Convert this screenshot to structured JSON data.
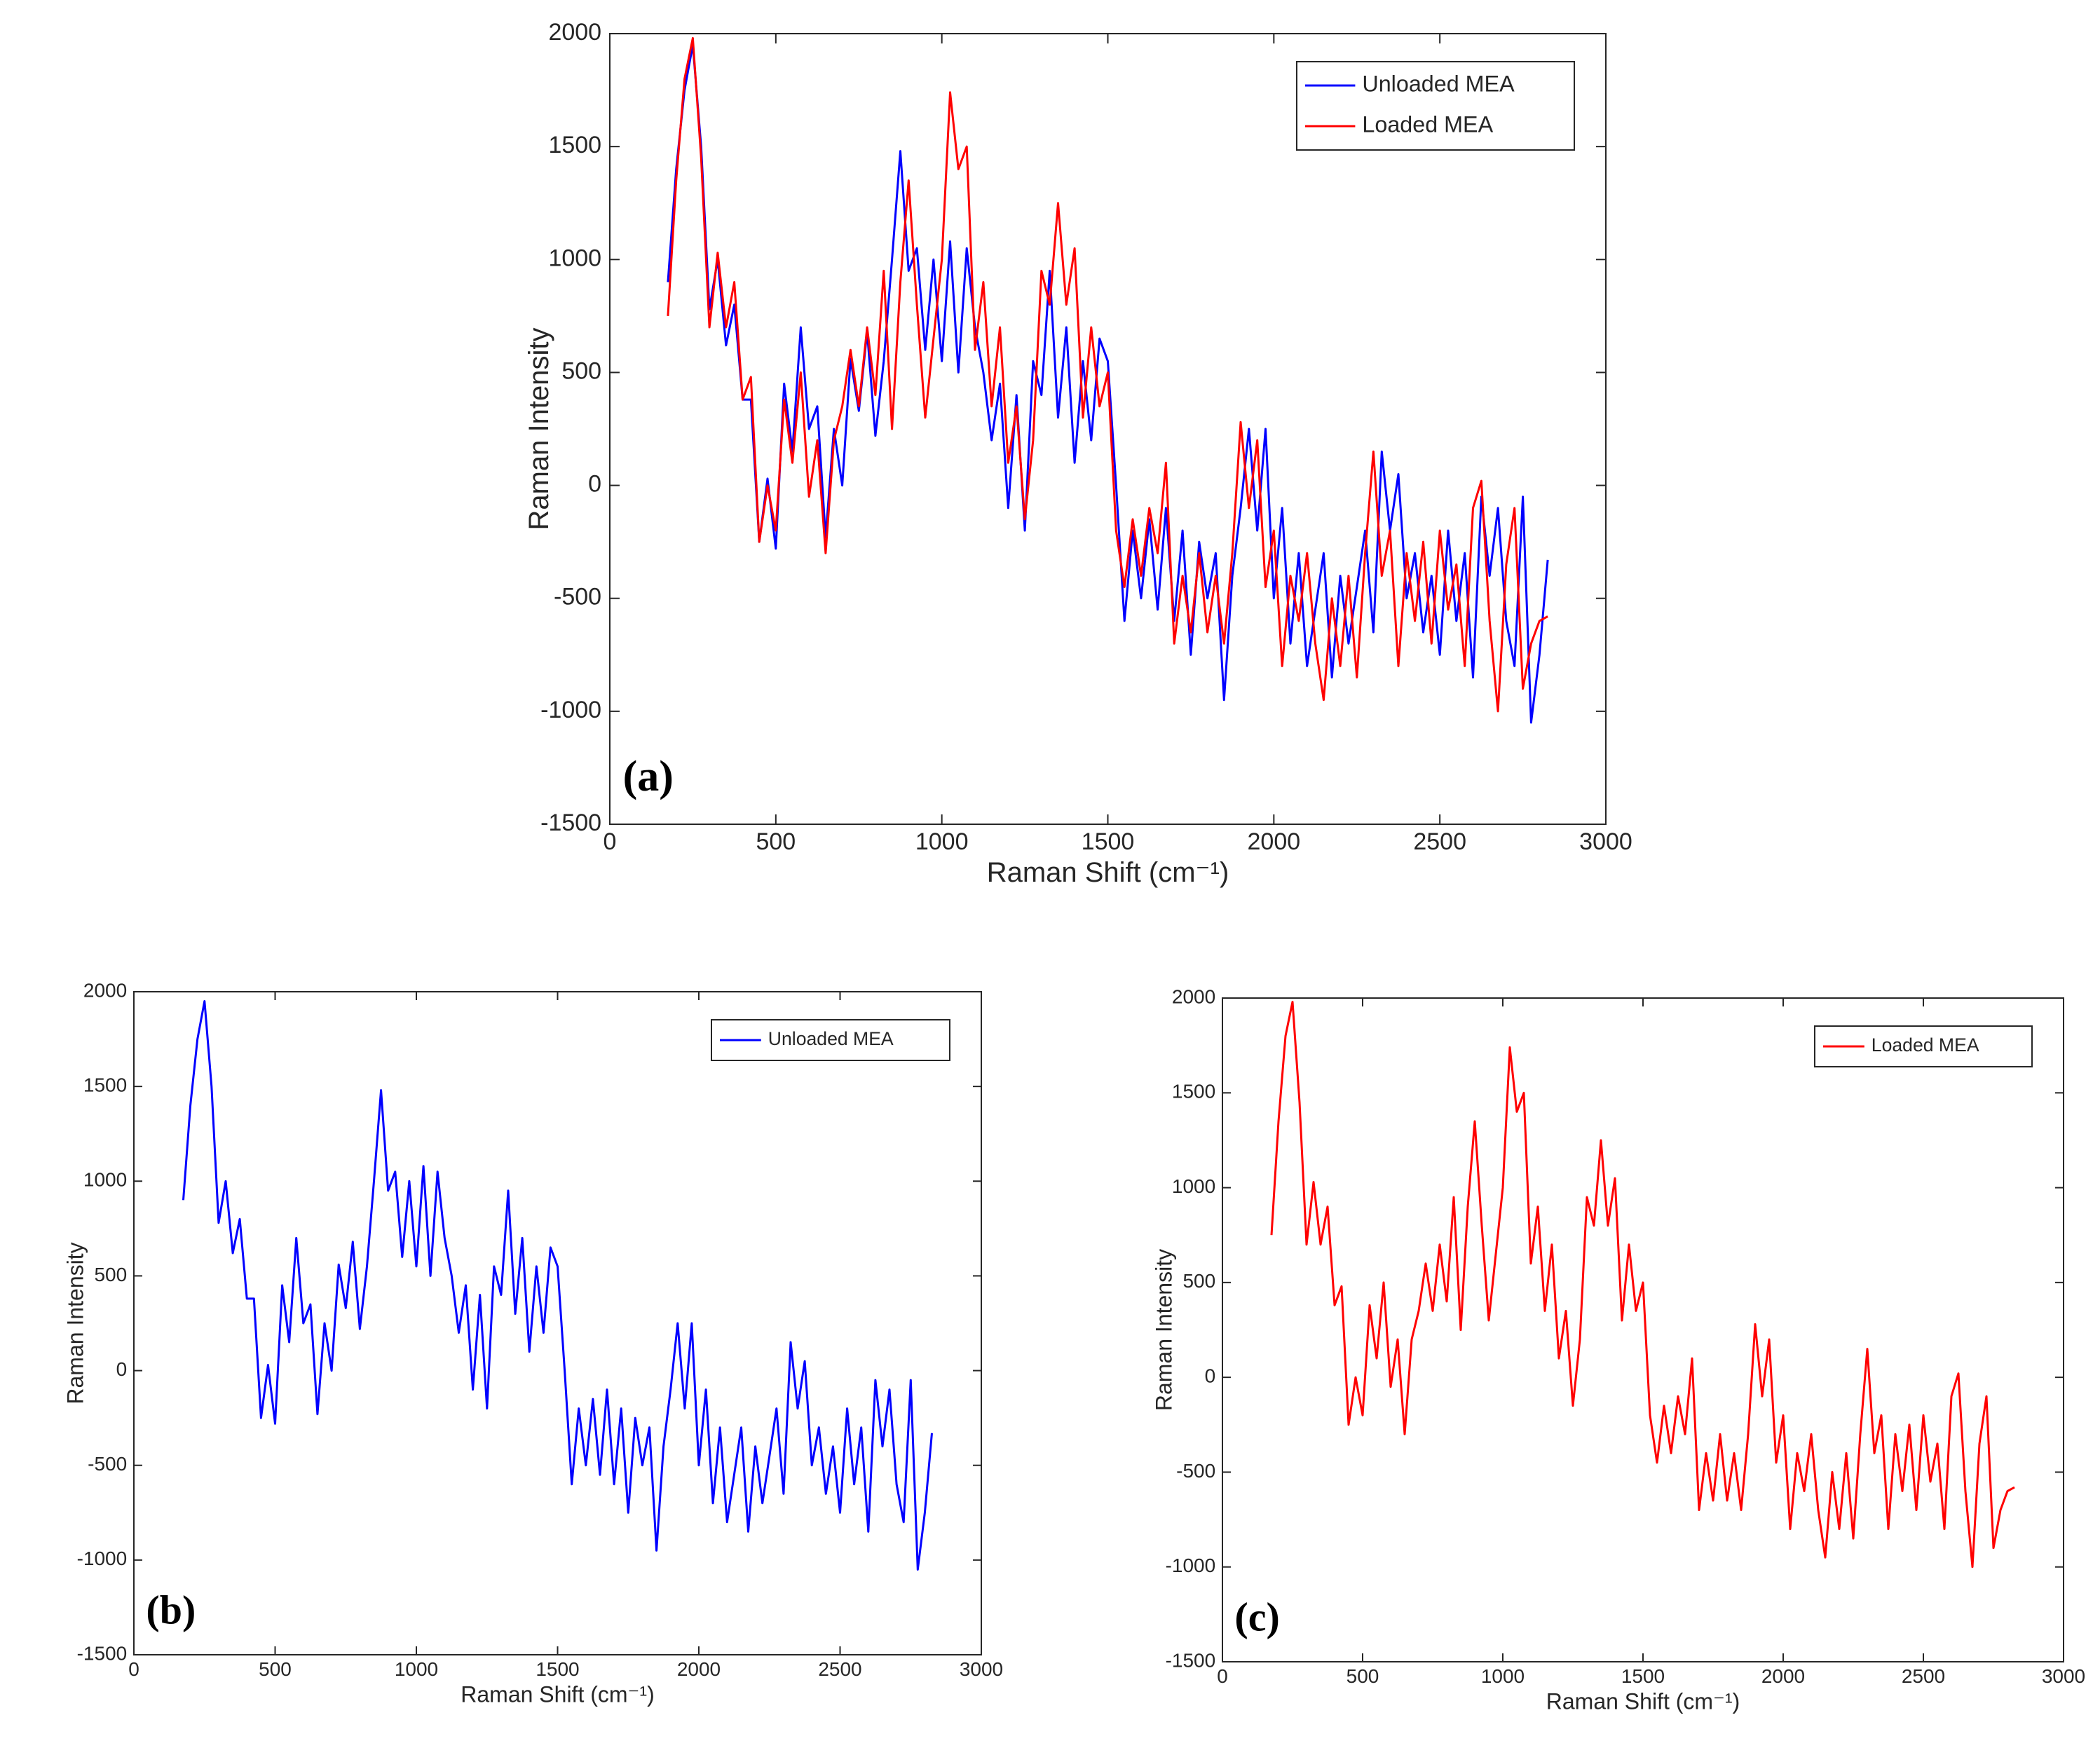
{
  "chart_data": [
    {
      "type": "line",
      "annotation": "(a)",
      "xlabel": "Raman Shift (cm⁻¹)",
      "ylabel": "Raman Intensity",
      "x": [
        175,
        200,
        225,
        250,
        275,
        300,
        325,
        350,
        375,
        400,
        425,
        450,
        475,
        500,
        525,
        550,
        575,
        600,
        625,
        650,
        675,
        700,
        725,
        750,
        775,
        800,
        825,
        850,
        875,
        900,
        925,
        950,
        975,
        1000,
        1025,
        1050,
        1075,
        1100,
        1125,
        1150,
        1175,
        1200,
        1225,
        1250,
        1275,
        1300,
        1325,
        1350,
        1375,
        1400,
        1425,
        1450,
        1475,
        1500,
        1525,
        1550,
        1575,
        1600,
        1625,
        1650,
        1675,
        1700,
        1725,
        1750,
        1775,
        1800,
        1825,
        1850,
        1875,
        1900,
        1925,
        1950,
        1975,
        2000,
        2025,
        2050,
        2075,
        2100,
        2125,
        2150,
        2175,
        2200,
        2225,
        2250,
        2275,
        2300,
        2325,
        2350,
        2375,
        2400,
        2425,
        2450,
        2475,
        2500,
        2525,
        2550,
        2575,
        2600,
        2625,
        2650,
        2675,
        2700,
        2725,
        2750,
        2775,
        2800,
        2825
      ],
      "series": [
        {
          "name": "Unloaded MEA",
          "color": "#0000ff",
          "values": [
            900,
            1400,
            1750,
            1950,
            1500,
            780,
            1000,
            620,
            800,
            380,
            380,
            -250,
            30,
            -280,
            450,
            150,
            700,
            250,
            350,
            -230,
            250,
            0,
            560,
            330,
            680,
            220,
            550,
            1000,
            1480,
            950,
            1050,
            600,
            1000,
            550,
            1080,
            500,
            1050,
            700,
            500,
            200,
            450,
            -100,
            400,
            -200,
            550,
            400,
            950,
            300,
            700,
            100,
            550,
            200,
            650,
            550,
            0,
            -600,
            -200,
            -500,
            -150,
            -550,
            -100,
            -600,
            -200,
            -750,
            -250,
            -500,
            -300,
            -950,
            -400,
            -100,
            250,
            -200,
            250,
            -500,
            -100,
            -700,
            -300,
            -800,
            -550,
            -300,
            -850,
            -400,
            -700,
            -450,
            -200,
            -650,
            150,
            -200,
            50,
            -500,
            -300,
            -650,
            -400,
            -750,
            -200,
            -600,
            -300,
            -850,
            -50,
            -400,
            -100,
            -600,
            -800,
            -50,
            -1050,
            -750,
            -330
          ]
        },
        {
          "name": "Loaded MEA",
          "color": "#ff0000",
          "values": [
            750,
            1350,
            1800,
            1980,
            1450,
            700,
            1030,
            700,
            900,
            380,
            480,
            -250,
            0,
            -200,
            380,
            100,
            500,
            -50,
            200,
            -300,
            200,
            350,
            600,
            350,
            700,
            400,
            950,
            250,
            900,
            1350,
            800,
            300,
            650,
            1000,
            1740,
            1400,
            1500,
            600,
            900,
            350,
            700,
            100,
            350,
            -150,
            200,
            950,
            800,
            1250,
            800,
            1050,
            300,
            700,
            350,
            500,
            -200,
            -450,
            -150,
            -400,
            -100,
            -300,
            100,
            -700,
            -400,
            -650,
            -300,
            -650,
            -400,
            -700,
            -300,
            280,
            -100,
            200,
            -450,
            -200,
            -800,
            -400,
            -600,
            -300,
            -700,
            -950,
            -500,
            -800,
            -400,
            -850,
            -300,
            150,
            -400,
            -200,
            -800,
            -300,
            -600,
            -250,
            -700,
            -200,
            -550,
            -350,
            -800,
            -100,
            20,
            -600,
            -1000,
            -350,
            -100,
            -900,
            -700,
            -600,
            -580
          ]
        }
      ],
      "xlim": [
        0,
        3000
      ],
      "ylim": [
        -1500,
        2000
      ],
      "xticks": [
        0,
        500,
        1000,
        1500,
        2000,
        2500,
        3000
      ],
      "yticks": [
        -1500,
        -1000,
        -500,
        0,
        500,
        1000,
        1500,
        2000
      ],
      "legend": "northeast"
    },
    {
      "type": "line",
      "annotation": "(b)",
      "xlabel": "Raman Shift (cm⁻¹)",
      "ylabel": "Raman Intensity",
      "x": [
        175,
        200,
        225,
        250,
        275,
        300,
        325,
        350,
        375,
        400,
        425,
        450,
        475,
        500,
        525,
        550,
        575,
        600,
        625,
        650,
        675,
        700,
        725,
        750,
        775,
        800,
        825,
        850,
        875,
        900,
        925,
        950,
        975,
        1000,
        1025,
        1050,
        1075,
        1100,
        1125,
        1150,
        1175,
        1200,
        1225,
        1250,
        1275,
        1300,
        1325,
        1350,
        1375,
        1400,
        1425,
        1450,
        1475,
        1500,
        1525,
        1550,
        1575,
        1600,
        1625,
        1650,
        1675,
        1700,
        1725,
        1750,
        1775,
        1800,
        1825,
        1850,
        1875,
        1900,
        1925,
        1950,
        1975,
        2000,
        2025,
        2050,
        2075,
        2100,
        2125,
        2150,
        2175,
        2200,
        2225,
        2250,
        2275,
        2300,
        2325,
        2350,
        2375,
        2400,
        2425,
        2450,
        2475,
        2500,
        2525,
        2550,
        2575,
        2600,
        2625,
        2650,
        2675,
        2700,
        2725,
        2750,
        2775,
        2800,
        2825
      ],
      "series": [
        {
          "name": "Unloaded MEA",
          "color": "#0000ff",
          "values": [
            900,
            1400,
            1750,
            1950,
            1500,
            780,
            1000,
            620,
            800,
            380,
            380,
            -250,
            30,
            -280,
            450,
            150,
            700,
            250,
            350,
            -230,
            250,
            0,
            560,
            330,
            680,
            220,
            550,
            1000,
            1480,
            950,
            1050,
            600,
            1000,
            550,
            1080,
            500,
            1050,
            700,
            500,
            200,
            450,
            -100,
            400,
            -200,
            550,
            400,
            950,
            300,
            700,
            100,
            550,
            200,
            650,
            550,
            0,
            -600,
            -200,
            -500,
            -150,
            -550,
            -100,
            -600,
            -200,
            -750,
            -250,
            -500,
            -300,
            -950,
            -400,
            -100,
            250,
            -200,
            250,
            -500,
            -100,
            -700,
            -300,
            -800,
            -550,
            -300,
            -850,
            -400,
            -700,
            -450,
            -200,
            -650,
            150,
            -200,
            50,
            -500,
            -300,
            -650,
            -400,
            -750,
            -200,
            -600,
            -300,
            -850,
            -50,
            -400,
            -100,
            -600,
            -800,
            -50,
            -1050,
            -750,
            -330
          ]
        }
      ],
      "xlim": [
        0,
        3000
      ],
      "ylim": [
        -1500,
        2000
      ],
      "xticks": [
        0,
        500,
        1000,
        1500,
        2000,
        2500,
        3000
      ],
      "yticks": [
        -1500,
        -1000,
        -500,
        0,
        500,
        1000,
        1500,
        2000
      ],
      "legend": "northeast"
    },
    {
      "type": "line",
      "annotation": "(c)",
      "xlabel": "Raman Shift (cm⁻¹)",
      "ylabel": "Raman Intensity",
      "x": [
        175,
        200,
        225,
        250,
        275,
        300,
        325,
        350,
        375,
        400,
        425,
        450,
        475,
        500,
        525,
        550,
        575,
        600,
        625,
        650,
        675,
        700,
        725,
        750,
        775,
        800,
        825,
        850,
        875,
        900,
        925,
        950,
        975,
        1000,
        1025,
        1050,
        1075,
        1100,
        1125,
        1150,
        1175,
        1200,
        1225,
        1250,
        1275,
        1300,
        1325,
        1350,
        1375,
        1400,
        1425,
        1450,
        1475,
        1500,
        1525,
        1550,
        1575,
        1600,
        1625,
        1650,
        1675,
        1700,
        1725,
        1750,
        1775,
        1800,
        1825,
        1850,
        1875,
        1900,
        1925,
        1950,
        1975,
        2000,
        2025,
        2050,
        2075,
        2100,
        2125,
        2150,
        2175,
        2200,
        2225,
        2250,
        2275,
        2300,
        2325,
        2350,
        2375,
        2400,
        2425,
        2450,
        2475,
        2500,
        2525,
        2550,
        2575,
        2600,
        2625,
        2650,
        2675,
        2700,
        2725,
        2750,
        2775,
        2800,
        2825
      ],
      "series": [
        {
          "name": "Loaded MEA",
          "color": "#ff0000",
          "values": [
            750,
            1350,
            1800,
            1980,
            1450,
            700,
            1030,
            700,
            900,
            380,
            480,
            -250,
            0,
            -200,
            380,
            100,
            500,
            -50,
            200,
            -300,
            200,
            350,
            600,
            350,
            700,
            400,
            950,
            250,
            900,
            1350,
            800,
            300,
            650,
            1000,
            1740,
            1400,
            1500,
            600,
            900,
            350,
            700,
            100,
            350,
            -150,
            200,
            950,
            800,
            1250,
            800,
            1050,
            300,
            700,
            350,
            500,
            -200,
            -450,
            -150,
            -400,
            -100,
            -300,
            100,
            -700,
            -400,
            -650,
            -300,
            -650,
            -400,
            -700,
            -300,
            280,
            -100,
            200,
            -450,
            -200,
            -800,
            -400,
            -600,
            -300,
            -700,
            -950,
            -500,
            -800,
            -400,
            -850,
            -300,
            150,
            -400,
            -200,
            -800,
            -300,
            -600,
            -250,
            -700,
            -200,
            -550,
            -350,
            -800,
            -100,
            20,
            -600,
            -1000,
            -350,
            -100,
            -900,
            -700,
            -600,
            -580
          ]
        }
      ],
      "xlim": [
        0,
        3000
      ],
      "ylim": [
        -1500,
        2000
      ],
      "xticks": [
        0,
        500,
        1000,
        1500,
        2000,
        2500,
        3000
      ],
      "yticks": [
        -1500,
        -1000,
        -500,
        0,
        500,
        1000,
        1500,
        2000
      ],
      "legend": "northeast"
    }
  ]
}
